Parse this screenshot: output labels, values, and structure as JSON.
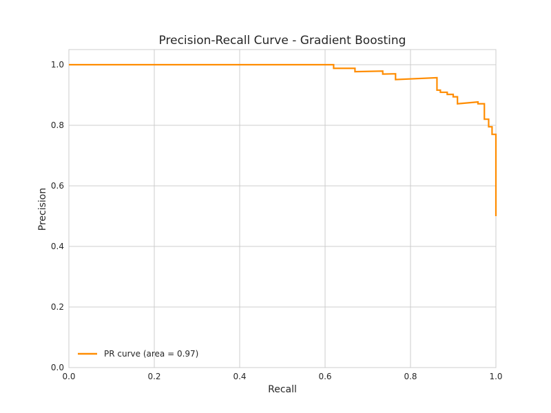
{
  "chart_data": {
    "type": "line",
    "title": "Precision-Recall Curve - Gradient Boosting",
    "xlabel": "Recall",
    "ylabel": "Precision",
    "xlim": [
      0.0,
      1.0
    ],
    "ylim": [
      0.0,
      1.05
    ],
    "xticks": [
      "0.0",
      "0.2",
      "0.4",
      "0.6",
      "0.8",
      "1.0"
    ],
    "yticks": [
      "0.0",
      "0.2",
      "0.4",
      "0.6",
      "0.8",
      "1.0"
    ],
    "grid": true,
    "legend_position": "lower-left",
    "series": [
      {
        "name": "PR curve (area = 0.97)",
        "color": "#ff8c00",
        "step": true,
        "x": [
          0.0,
          0.62,
          0.62,
          0.67,
          0.67,
          0.735,
          0.735,
          0.765,
          0.765,
          0.862,
          0.862,
          0.87,
          0.87,
          0.886,
          0.886,
          0.9,
          0.9,
          0.91,
          0.91,
          0.958,
          0.958,
          0.973,
          0.973,
          0.983,
          0.983,
          0.991,
          0.991,
          1.0,
          1.0
        ],
        "y": [
          1.0,
          1.0,
          0.988,
          0.988,
          0.977,
          0.979,
          0.969,
          0.97,
          0.951,
          0.957,
          0.916,
          0.916,
          0.909,
          0.909,
          0.902,
          0.902,
          0.894,
          0.894,
          0.871,
          0.877,
          0.871,
          0.871,
          0.82,
          0.82,
          0.795,
          0.795,
          0.77,
          0.77,
          0.5
        ]
      }
    ]
  }
}
